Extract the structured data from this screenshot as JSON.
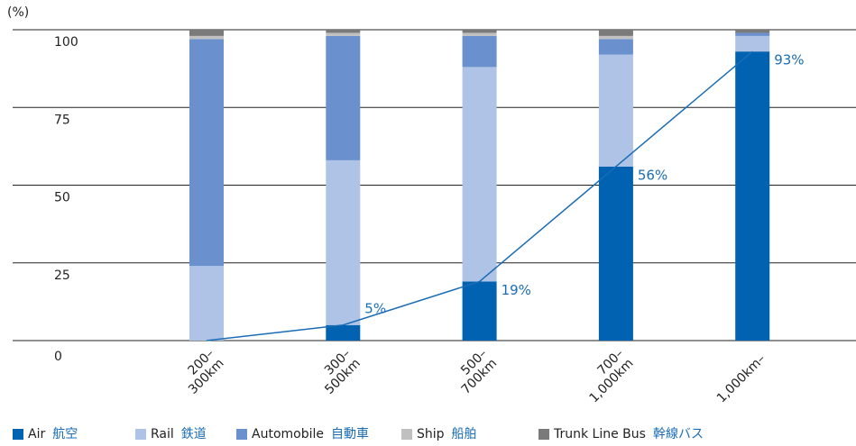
{
  "chart_data": {
    "type": "bar",
    "stacked": true,
    "y_label": "(%)",
    "categories": [
      [
        "200–",
        "300km"
      ],
      [
        "300–",
        "500km"
      ],
      [
        "500–",
        "700km"
      ],
      [
        "700–",
        "1,000km"
      ],
      [
        "1,000km–"
      ]
    ],
    "ylim": [
      0,
      100
    ],
    "yticks": [
      0,
      25,
      50,
      75,
      100
    ],
    "grid": true,
    "legend": "bottom",
    "line_series": 0,
    "line_color": "#1a6db5",
    "series": [
      {
        "name": "Air",
        "name_ja": "航空",
        "color": "#0062b1",
        "values": [
          0,
          5,
          19,
          56,
          93
        ],
        "value_labels": [
          null,
          "5%",
          "19%",
          "56%",
          "93%"
        ]
      },
      {
        "name": "Rail",
        "name_ja": "鉄道",
        "color": "#afc3e6",
        "values": [
          24,
          53,
          69,
          36,
          5
        ]
      },
      {
        "name": "Automobile",
        "name_ja": "自動車",
        "color": "#6a91cd",
        "values": [
          73,
          40,
          10,
          5,
          1
        ]
      },
      {
        "name": "Ship",
        "name_ja": "船舶",
        "color": "#c0c0c0",
        "values": [
          1,
          1,
          1,
          1,
          0
        ]
      },
      {
        "name": "Trunk Line Bus",
        "name_ja": "幹線バス",
        "color": "#7a7a7a",
        "values": [
          2,
          1,
          1,
          2,
          1
        ]
      }
    ]
  }
}
